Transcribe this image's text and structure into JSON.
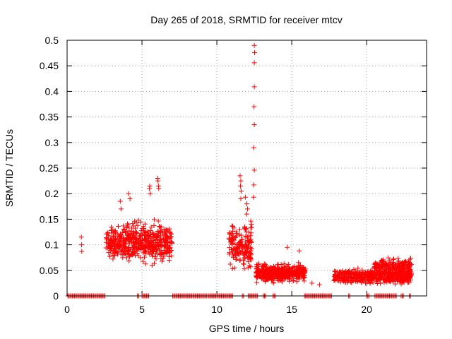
{
  "chart_data": {
    "type": "scatter",
    "title": "Day 265 of 2018, SRMTID for receiver mtcv",
    "xlabel": "GPS time / hours",
    "ylabel": "SRMTID / TECUs",
    "xlim": [
      0,
      24
    ],
    "ylim": [
      0,
      0.5
    ],
    "x_ticks": [
      0,
      5,
      10,
      15,
      20
    ],
    "x_tick_labels": [
      "0",
      "5",
      "10",
      "15",
      "20"
    ],
    "y_ticks": [
      0,
      0.05,
      0.1,
      0.15,
      0.2,
      0.25,
      0.3,
      0.35,
      0.4,
      0.45,
      0.5
    ],
    "y_tick_labels": [
      "0",
      "0.05",
      "0.1",
      "0.15",
      "0.2",
      "0.25",
      "0.3",
      "0.35",
      "0.4",
      "0.45",
      "0.5"
    ],
    "grid": true,
    "marker": "plus",
    "series_color": "#ff0000",
    "series": [
      {
        "name": "SRMTID",
        "points": [
          [
            0.95,
            0.115
          ],
          [
            0.97,
            0.1
          ],
          [
            0.98,
            0.087
          ],
          [
            12.5,
            0.49
          ],
          [
            12.52,
            0.476
          ],
          [
            12.5,
            0.456
          ],
          [
            12.5,
            0.409
          ],
          [
            12.48,
            0.37
          ],
          [
            12.5,
            0.335
          ],
          [
            12.46,
            0.29
          ],
          [
            12.5,
            0.246
          ],
          [
            12.47,
            0.217
          ],
          [
            12.45,
            0.193
          ],
          [
            11.55,
            0.235
          ],
          [
            11.6,
            0.225
          ],
          [
            11.58,
            0.215
          ],
          [
            11.62,
            0.205
          ],
          [
            11.6,
            0.19
          ],
          [
            11.9,
            0.193
          ],
          [
            12.0,
            0.18
          ],
          [
            12.05,
            0.17
          ],
          [
            12.0,
            0.16
          ],
          [
            5.5,
            0.21
          ],
          [
            5.52,
            0.215
          ],
          [
            5.55,
            0.2
          ],
          [
            6.05,
            0.23
          ],
          [
            6.07,
            0.225
          ],
          [
            6.1,
            0.215
          ],
          [
            6.12,
            0.21
          ],
          [
            3.55,
            0.185
          ],
          [
            3.6,
            0.17
          ],
          [
            4.1,
            0.2
          ],
          [
            4.2,
            0.19
          ],
          [
            16.35,
            0.025
          ],
          [
            16.85,
            0.022
          ],
          [
            14.7,
            0.095
          ],
          [
            15.5,
            0.088
          ]
        ],
        "clusters": [
          {
            "x_range": [
              2.6,
              7.0
            ],
            "y_center": 0.105,
            "y_spread": 0.05,
            "count": 520
          },
          {
            "x_range": [
              10.8,
              12.35
            ],
            "y_center": 0.1,
            "y_spread": 0.06,
            "count": 170
          },
          {
            "x_range": [
              12.6,
              15.9
            ],
            "y_center": 0.045,
            "y_spread": 0.022,
            "count": 450
          },
          {
            "x_range": [
              17.8,
              23.0
            ],
            "y_center": 0.038,
            "y_spread": 0.018,
            "count": 500
          },
          {
            "x_range": [
              20.5,
              23.0
            ],
            "y_center": 0.058,
            "y_spread": 0.02,
            "count": 200
          }
        ],
        "baseline_segments": [
          [
            0.05,
            2.6
          ],
          [
            4.7,
            4.85
          ],
          [
            5.0,
            5.5
          ],
          [
            7.05,
            9.3
          ],
          [
            9.4,
            11.05
          ],
          [
            11.7,
            11.8
          ],
          [
            12.1,
            12.7
          ],
          [
            13.1,
            13.25
          ],
          [
            13.75,
            13.9
          ],
          [
            15.85,
            17.7
          ],
          [
            18.8,
            18.9
          ],
          [
            20.0,
            20.15
          ],
          [
            20.55,
            22.0
          ],
          [
            22.3,
            22.45
          ],
          [
            22.85,
            22.95
          ]
        ]
      }
    ]
  }
}
